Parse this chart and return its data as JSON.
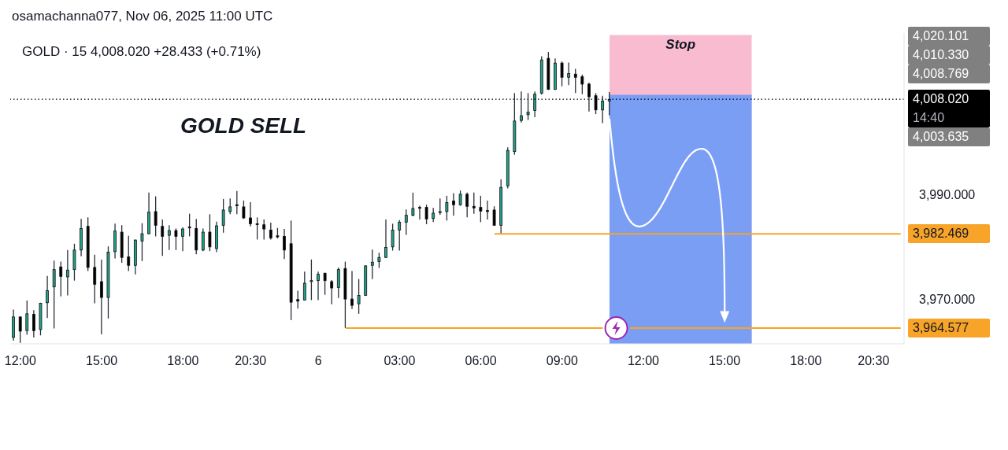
{
  "chart_data": {
    "type": "candlestick",
    "title": "GOLD SELL",
    "subtitle": "GOLD · 15 4,008.020 +28.433 (+0.71%)",
    "annotations": [
      "osamachanna077, Nov 06, 2025 11:00 UTC",
      "14:40",
      "4,020.101",
      "4,010.330",
      "4,008.769",
      "4,003.635"
    ],
    "categories": [
      null,
      "12:00",
      null,
      null,
      null,
      null,
      null,
      null,
      null,
      null,
      null,
      null,
      null,
      "15:00",
      null,
      null,
      null,
      null,
      null,
      null,
      null,
      null,
      null,
      null,
      null,
      "18:00",
      null,
      null,
      null,
      null,
      null,
      null,
      null,
      null,
      null,
      "20:30",
      null,
      null,
      null,
      null,
      null,
      null,
      null,
      null,
      null,
      "6",
      null,
      null,
      null,
      null,
      null,
      null,
      null,
      null,
      null,
      null,
      null,
      "03:00",
      null,
      null,
      null,
      null,
      null,
      null,
      null,
      null,
      null,
      null,
      null,
      "06:00",
      null,
      null,
      null,
      null,
      null,
      null,
      null,
      null,
      null,
      null,
      null,
      "09:00",
      null,
      null,
      null,
      null,
      null,
      null,
      null,
      null,
      null,
      null,
      null,
      "12:00",
      null,
      null,
      null,
      null,
      null,
      null,
      null,
      null,
      null,
      null,
      null,
      "15:00",
      null,
      null,
      null,
      null,
      null,
      null,
      null,
      null,
      null,
      null,
      null,
      "18:00",
      null,
      null,
      null,
      null,
      null,
      null,
      null,
      null,
      null,
      "20:30",
      null,
      null,
      null,
      null
    ],
    "series": [
      {
        "ohlc": [
          [
            3962.8,
            3968.1,
            3962.2,
            3966.7
          ],
          [
            3966.7,
            3966.8,
            3961.8,
            3964.0
          ],
          [
            3964.1,
            3969.8,
            3963.3,
            3967.3
          ],
          [
            3967.2,
            3968.0,
            3962.8,
            3964.1
          ],
          [
            3964.3,
            3969.4,
            3963.2,
            3969.3
          ],
          [
            3969.4,
            3974.5,
            3966.5,
            3971.7
          ],
          [
            3972.4,
            3977.4,
            3964.5,
            3975.7
          ],
          [
            3976.2,
            3977.2,
            3970.6,
            3974.4
          ],
          [
            3974.3,
            3979.4,
            3970.8,
            3975.6
          ],
          [
            3975.7,
            3980.6,
            3973.6,
            3979.4
          ],
          [
            3979.4,
            3985.3,
            3978.2,
            3983.5
          ],
          [
            3983.9,
            3985.6,
            3975.4,
            3976.1
          ],
          [
            3976.1,
            3978.5,
            3969.3,
            3972.9
          ],
          [
            3973.4,
            3977.6,
            3963.4,
            3970.4
          ],
          [
            3970.4,
            3980.1,
            3966.4,
            3979.0
          ],
          [
            3979.1,
            3984.4,
            3977.8,
            3983.0
          ],
          [
            3982.8,
            3984.1,
            3977.0,
            3978.0
          ],
          [
            3978.1,
            3982.1,
            3975.4,
            3976.5
          ],
          [
            3976.5,
            3981.4,
            3974.8,
            3981.3
          ],
          [
            3981.1,
            3984.5,
            3977.3,
            3982.5
          ],
          [
            3982.5,
            3990.3,
            3982.4,
            3986.6
          ],
          [
            3986.7,
            3989.6,
            3982.0,
            3984.1
          ],
          [
            3983.9,
            3985.2,
            3978.3,
            3982.0
          ],
          [
            3982.2,
            3984.1,
            3979.4,
            3983.1
          ],
          [
            3983.1,
            3983.5,
            3979.4,
            3982.0
          ],
          [
            3982.0,
            3983.7,
            3979.2,
            3983.4
          ],
          [
            3983.8,
            3986.3,
            3982.0,
            3983.6
          ],
          [
            3983.5,
            3985.3,
            3978.6,
            3979.4
          ],
          [
            3979.4,
            3983.5,
            3979.2,
            3982.8
          ],
          [
            3982.8,
            3986.2,
            3979.2,
            3980.0
          ],
          [
            3979.7,
            3984.8,
            3979.0,
            3984.0
          ],
          [
            3984.1,
            3989.1,
            3982.7,
            3987.0
          ],
          [
            3986.7,
            3989.2,
            3986.2,
            3987.6
          ],
          [
            3988.0,
            3990.6,
            3986.2,
            3987.8
          ],
          [
            3987.6,
            3988.8,
            3985.3,
            3985.5
          ],
          [
            3985.5,
            3988.5,
            3983.9,
            3984.4
          ],
          [
            3984.4,
            3985.6,
            3981.4,
            3984.3
          ],
          [
            3984.2,
            3985.2,
            3981.4,
            3983.4
          ],
          [
            3983.2,
            3984.6,
            3981.4,
            3981.7
          ],
          [
            3982.1,
            3983.6,
            3981.6,
            3981.9
          ],
          [
            3982.0,
            3983.4,
            3977.7,
            3979.4
          ],
          [
            3980.6,
            3985.0,
            3966.1,
            3969.5
          ],
          [
            3970.0,
            3971.7,
            3968.3,
            3969.7
          ],
          [
            3969.9,
            3975.3,
            3969.8,
            3973.1
          ],
          [
            3973.5,
            3977.6,
            3969.9,
            3973.6
          ],
          [
            3973.6,
            3975.3,
            3969.9,
            3974.8
          ],
          [
            3975.0,
            3975.1,
            3970.9,
            3973.6
          ],
          [
            3973.4,
            3973.7,
            3969.1,
            3972.2
          ],
          [
            3972.3,
            3976.1,
            3970.3,
            3975.7
          ],
          [
            3975.9,
            3977.2,
            3964.6,
            3970.1
          ],
          [
            3970.1,
            3975.4,
            3968.2,
            3968.9
          ],
          [
            3969.2,
            3973.9,
            3967.3,
            3970.8
          ],
          [
            3970.8,
            3976.5,
            3970.7,
            3976.4
          ],
          [
            3976.5,
            3979.5,
            3973.9,
            3977.1
          ],
          [
            3977.2,
            3978.9,
            3976.0,
            3978.0
          ],
          [
            3978.0,
            3985.2,
            3977.9,
            3979.9
          ],
          [
            3980.0,
            3984.4,
            3979.3,
            3983.2
          ],
          [
            3983.2,
            3985.1,
            3979.3,
            3984.7
          ],
          [
            3984.7,
            3987.1,
            3982.3,
            3986.0
          ],
          [
            3986.0,
            3990.3,
            3985.8,
            3987.3
          ],
          [
            3987.5,
            3987.8,
            3985.2,
            3987.4
          ],
          [
            3987.5,
            3988.0,
            3984.3,
            3985.3
          ],
          [
            3985.4,
            3987.4,
            3984.7,
            3986.4
          ],
          [
            3986.6,
            3989.2,
            3986.1,
            3986.7
          ],
          [
            3986.7,
            3989.7,
            3985.0,
            3988.4
          ],
          [
            3988.7,
            3990.2,
            3985.9,
            3988.0
          ],
          [
            3988.0,
            3990.7,
            3987.8,
            3990.0
          ],
          [
            3990.0,
            3990.3,
            3985.6,
            3987.7
          ],
          [
            3987.7,
            3990.3,
            3986.3,
            3987.4
          ],
          [
            3987.5,
            3989.7,
            3984.7,
            3986.8
          ],
          [
            3986.9,
            3988.8,
            3985.2,
            3986.7
          ],
          [
            3987.0,
            3987.7,
            3984.0,
            3984.1
          ],
          [
            3984.1,
            3992.8,
            3982.5,
            3991.3
          ],
          [
            3991.6,
            3998.9,
            3991.1,
            3998.3
          ],
          [
            3998.1,
            4009.2,
            3997.5,
            4003.9
          ],
          [
            4004.0,
            4009.5,
            4003.6,
            4004.9
          ],
          [
            4005.1,
            4009.2,
            4004.1,
            4005.6
          ],
          [
            4005.9,
            4009.5,
            4004.6,
            4009.0
          ],
          [
            4009.2,
            4016.2,
            4008.9,
            4015.5
          ],
          [
            4015.8,
            4017.0,
            4009.8,
            4009.9
          ],
          [
            4009.9,
            4015.8,
            4009.8,
            4014.9
          ],
          [
            4014.9,
            4015.2,
            4010.5,
            4012.2
          ],
          [
            4012.2,
            4015.0,
            4010.7,
            4012.9
          ],
          [
            4012.8,
            4013.8,
            4009.2,
            4012.2
          ],
          [
            4012.3,
            4012.7,
            4009.0,
            4010.9
          ],
          [
            4010.9,
            4011.2,
            4005.7,
            4008.5
          ],
          [
            4008.7,
            4009.2,
            4005.2,
            4006.0
          ],
          [
            4006.0,
            4008.7,
            4003.5,
            4007.7
          ],
          [
            4007.7,
            4009.4,
            4005.0,
            4008.0
          ],
          null,
          null,
          null,
          null,
          null,
          null,
          null,
          null,
          null,
          null,
          null,
          null,
          null,
          null,
          null,
          null,
          null,
          null,
          null,
          null,
          null,
          null,
          null,
          null,
          null,
          null,
          null,
          null,
          null,
          null,
          null,
          null,
          null,
          null,
          null,
          null,
          null,
          null,
          null,
          null,
          null,
          null,
          null
        ],
        "colors": [
          "#22a18b",
          "#000000",
          "#22a18b",
          "#000000",
          "#22a18b",
          "#22a18b",
          "#22a18b",
          "#000000",
          "#22a18b",
          "#22a18b",
          "#22a18b",
          "#000000",
          "#000000",
          "#000000",
          "#22a18b",
          "#22a18b",
          "#000000",
          "#000000",
          "#22a18b",
          "#22a18b",
          "#22a18b",
          "#000000",
          "#000000",
          "#22a18b",
          "#000000",
          "#22a18b",
          "#000000",
          "#000000",
          "#22a18b",
          "#000000",
          "#22a18b",
          "#22a18b",
          "#22a18b",
          "#000000",
          "#000000",
          "#000000",
          "#000000",
          "#000000",
          "#000000",
          "#000000",
          "#000000",
          "#000000",
          "#000000",
          "#22a18b",
          "#22a18b",
          "#22a18b",
          "#000000",
          "#000000",
          "#22a18b",
          "#000000",
          "#000000",
          "#22a18b",
          "#22a18b",
          "#22a18b",
          "#22a18b",
          "#22a18b",
          "#22a18b",
          "#22a18b",
          "#22a18b",
          "#22a18b",
          "#000000",
          "#000000",
          "#22a18b",
          "#22a18b",
          "#22a18b",
          "#000000",
          "#22a18b",
          "#000000",
          "#000000",
          "#000000",
          "#000000",
          "#000000",
          "#22a18b",
          "#22a18b",
          "#22a18b",
          "#22a18b",
          "#22a18b",
          "#22a18b",
          "#22a18b",
          "#000000",
          "#22a18b",
          "#000000",
          "#22a18b",
          "#000000",
          "#000000",
          "#000000",
          "#000000",
          "#22a18b",
          "#22a18b",
          null,
          null,
          null,
          null,
          null,
          null,
          null,
          null,
          null,
          null,
          null,
          null,
          null,
          null,
          null,
          null,
          null,
          null,
          null,
          null,
          null,
          null,
          null,
          null,
          null,
          null,
          null,
          null,
          null,
          null,
          null,
          null,
          null,
          null,
          null,
          null,
          null,
          null,
          null,
          null,
          null,
          null,
          null
        ]
      },
      {
        "type": "area",
        "name": "Stop",
        "color": "#f8bbd0",
        "values": [
          null,
          null,
          null,
          null,
          null,
          null,
          null,
          null,
          null,
          null,
          null,
          null,
          null,
          null,
          null,
          null,
          null,
          null,
          null,
          null,
          null,
          null,
          null,
          null,
          null,
          null,
          null,
          null,
          null,
          null,
          null,
          null,
          null,
          null,
          null,
          null,
          null,
          null,
          null,
          null,
          null,
          null,
          null,
          null,
          null,
          null,
          null,
          null,
          null,
          null,
          null,
          null,
          null,
          null,
          null,
          null,
          null,
          null,
          null,
          null,
          null,
          null,
          null,
          null,
          null,
          null,
          null,
          null,
          null,
          null,
          null,
          null,
          null,
          null,
          null,
          null,
          null,
          null,
          null,
          null,
          null,
          null,
          null,
          null,
          null,
          null,
          null,
          null,
          4020.101,
          4020.101,
          4020.101,
          4020.101,
          4020.101,
          4020.101,
          4020.101,
          4020.101,
          4020.101,
          4020.101,
          4020.101,
          4020.101,
          4020.101,
          4020.101,
          4020.101,
          4020.101,
          4020.101,
          4020.101,
          4020.101,
          4020.101,
          4020.101,
          4020.101,
          null,
          null,
          null,
          null,
          null,
          null,
          null,
          null,
          null,
          null,
          null,
          null,
          null,
          null,
          null,
          null,
          null,
          null,
          null,
          null,
          null,
          null
        ]
      },
      {
        "type": "area",
        "color": "#7b9ef5",
        "values": [
          null,
          null,
          null,
          null,
          null,
          null,
          null,
          null,
          null,
          null,
          null,
          null,
          null,
          null,
          null,
          null,
          null,
          null,
          null,
          null,
          null,
          null,
          null,
          null,
          null,
          null,
          null,
          null,
          null,
          null,
          null,
          null,
          null,
          null,
          null,
          null,
          null,
          null,
          null,
          null,
          null,
          null,
          null,
          null,
          null,
          null,
          null,
          null,
          null,
          null,
          null,
          null,
          null,
          null,
          null,
          null,
          null,
          null,
          null,
          null,
          null,
          null,
          null,
          null,
          null,
          null,
          null,
          null,
          null,
          null,
          null,
          null,
          null,
          null,
          null,
          null,
          null,
          null,
          null,
          null,
          null,
          null,
          null,
          null,
          null,
          null,
          null,
          null,
          4008.769,
          4008.769,
          4008.769,
          4008.769,
          4008.769,
          4008.769,
          4008.769,
          4008.769,
          4008.769,
          4008.769,
          4008.769,
          4008.769,
          4008.769,
          4008.769,
          4008.769,
          4008.769,
          4008.769,
          4008.769,
          4008.769,
          4008.769,
          4008.769,
          4008.769,
          null,
          null,
          null,
          null,
          null,
          null,
          null,
          null,
          null,
          null,
          null,
          null,
          null,
          null,
          null,
          null,
          null,
          null,
          null,
          null,
          null,
          null
        ]
      },
      {
        "type": "line",
        "color": "#f7a428",
        "values": [
          null,
          null,
          null,
          null,
          null,
          null,
          null,
          null,
          null,
          null,
          null,
          null,
          null,
          null,
          null,
          null,
          null,
          null,
          null,
          null,
          null,
          null,
          null,
          null,
          null,
          null,
          null,
          null,
          null,
          null,
          null,
          null,
          null,
          null,
          null,
          null,
          null,
          null,
          null,
          null,
          null,
          null,
          null,
          null,
          null,
          null,
          null,
          null,
          null,
          null,
          null,
          null,
          null,
          null,
          null,
          null,
          null,
          null,
          null,
          null,
          null,
          null,
          null,
          null,
          null,
          null,
          null,
          null,
          null,
          null,
          null,
          3982.469,
          3982.469,
          3982.469,
          3982.469,
          3982.469,
          3982.469,
          3982.469,
          3982.469,
          3982.469,
          3982.469,
          3982.469,
          3982.469,
          3982.469,
          3982.469,
          3982.469,
          3982.469,
          3982.469,
          3982.469,
          3982.469,
          3982.469,
          3982.469,
          3982.469,
          3982.469,
          3982.469,
          3982.469,
          3982.469,
          3982.469,
          3982.469,
          3982.469,
          3982.469,
          3982.469,
          3982.469,
          3982.469,
          3982.469,
          3982.469,
          3982.469,
          3982.469,
          3982.469,
          3982.469,
          3982.469,
          3982.469,
          3982.469,
          3982.469,
          3982.469,
          3982.469,
          3982.469,
          3982.469,
          3982.469,
          3982.469,
          3982.469,
          3982.469,
          3982.469,
          3982.469,
          3982.469,
          3982.469,
          3982.469,
          3982.469,
          3982.469,
          3982.469,
          3982.469,
          3982.469
        ],
        "value_labels": [
          null,
          null,
          null,
          null,
          null,
          null,
          null,
          null,
          null,
          null,
          null,
          null,
          null,
          null,
          null,
          null,
          null,
          null,
          null,
          null,
          null,
          null,
          null,
          null,
          null,
          null,
          null,
          null,
          null,
          null,
          null,
          null,
          null,
          null,
          null,
          null,
          null,
          null,
          null,
          null,
          null,
          null,
          null,
          null,
          null,
          null,
          null,
          null,
          null,
          null,
          null,
          null,
          null,
          null,
          null,
          null,
          null,
          null,
          null,
          null,
          null,
          null,
          null,
          null,
          null,
          null,
          null,
          null,
          null,
          null,
          null,
          null,
          null,
          null,
          null,
          null,
          null,
          null,
          null,
          null,
          null,
          null,
          null,
          null,
          null,
          null,
          null,
          null,
          null,
          null,
          null,
          null,
          null,
          null,
          null,
          null,
          null,
          null,
          null,
          null,
          null,
          null,
          null,
          null,
          null,
          null,
          null,
          null,
          null,
          null,
          null,
          null,
          null,
          null,
          null,
          null,
          null,
          null,
          null,
          null,
          null,
          null,
          null,
          null,
          null,
          null,
          null,
          null,
          null,
          null,
          null,
          "3,982.469"
        ]
      },
      {
        "type": "line",
        "color": "#f7a428",
        "values": [
          null,
          null,
          null,
          null,
          null,
          null,
          null,
          null,
          null,
          null,
          null,
          null,
          null,
          null,
          null,
          null,
          null,
          null,
          null,
          null,
          null,
          null,
          null,
          null,
          null,
          null,
          null,
          null,
          null,
          null,
          null,
          null,
          null,
          null,
          null,
          null,
          null,
          null,
          null,
          null,
          null,
          null,
          null,
          null,
          null,
          null,
          null,
          null,
          null,
          3964.577,
          3964.577,
          3964.577,
          3964.577,
          3964.577,
          3964.577,
          3964.577,
          3964.577,
          3964.577,
          3964.577,
          3964.577,
          3964.577,
          3964.577,
          3964.577,
          3964.577,
          3964.577,
          3964.577,
          3964.577,
          3964.577,
          3964.577,
          3964.577,
          3964.577,
          3964.577,
          3964.577,
          3964.577,
          3964.577,
          3964.577,
          3964.577,
          3964.577,
          3964.577,
          3964.577,
          3964.577,
          3964.577,
          3964.577,
          3964.577,
          3964.577,
          3964.577,
          3964.577,
          3964.577,
          null,
          null,
          null,
          3964.577,
          3964.577,
          3964.577,
          3964.577,
          3964.577,
          3964.577,
          3964.577,
          3964.577,
          3964.577,
          3964.577,
          3964.577,
          3964.577,
          3964.577,
          3964.577,
          3964.577,
          3964.577,
          3964.577,
          3964.577,
          3964.577,
          3964.577,
          3964.577,
          3964.577,
          3964.577,
          3964.577,
          3964.577,
          3964.577,
          3964.577,
          3964.577,
          3964.577,
          3964.577,
          3964.577,
          3964.577,
          3964.577,
          3964.577,
          3964.577,
          3964.577,
          3964.577,
          3964.577,
          3964.577,
          3964.577,
          3964.577
        ],
        "value_labels": [
          null,
          null,
          null,
          null,
          null,
          null,
          null,
          null,
          null,
          null,
          null,
          null,
          null,
          null,
          null,
          null,
          null,
          null,
          null,
          null,
          null,
          null,
          null,
          null,
          null,
          null,
          null,
          null,
          null,
          null,
          null,
          null,
          null,
          null,
          null,
          null,
          null,
          null,
          null,
          null,
          null,
          null,
          null,
          null,
          null,
          null,
          null,
          null,
          null,
          null,
          null,
          null,
          null,
          null,
          null,
          null,
          null,
          null,
          null,
          null,
          null,
          null,
          null,
          null,
          null,
          null,
          null,
          null,
          null,
          null,
          null,
          null,
          null,
          null,
          null,
          null,
          null,
          null,
          null,
          null,
          null,
          null,
          null,
          null,
          null,
          null,
          null,
          null,
          null,
          null,
          null,
          null,
          null,
          null,
          null,
          null,
          null,
          null,
          null,
          null,
          null,
          null,
          null,
          null,
          null,
          null,
          null,
          null,
          null,
          null,
          null,
          null,
          null,
          null,
          null,
          null,
          null,
          null,
          null,
          null,
          null,
          null,
          null,
          null,
          null,
          null,
          null,
          null,
          null,
          null,
          null,
          "3,964.577"
        ]
      }
    ],
    "ylim": [
      3961.6,
      4020.6
    ],
    "yticks": [
      {
        "value": 3970,
        "label": "3,970.000"
      },
      {
        "value": 3990,
        "label": "3,990.000"
      }
    ],
    "ref_lines": [
      {
        "axis": "y",
        "value": 4008.02,
        "label": "4,008.020",
        "color": "#000000",
        "line_style": "dotted"
      }
    ]
  }
}
